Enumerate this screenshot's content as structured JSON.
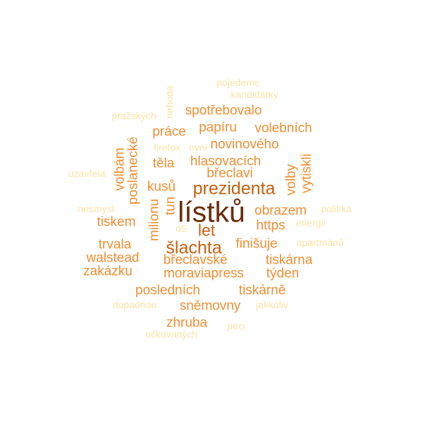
{
  "palette": {
    "dark": "#6b2d0c",
    "strong": "#c7600f",
    "mid": "#ef8e33",
    "soft": "#f7b25a",
    "pale": "#fde3a6"
  },
  "words": [
    {
      "text": "lístků",
      "color": "dark",
      "weight": 1.0
    },
    {
      "text": "prezidenta",
      "color": "strong",
      "weight": 0.7
    },
    {
      "text": "šlachta",
      "color": "strong",
      "weight": 0.65
    },
    {
      "text": "let",
      "color": "strong",
      "weight": 0.6
    },
    {
      "text": "volebních",
      "color": "mid",
      "weight": 0.45
    },
    {
      "text": "spotřebovalo",
      "color": "mid",
      "weight": 0.45
    },
    {
      "text": "papíru",
      "color": "mid",
      "weight": 0.45
    },
    {
      "text": "práce",
      "color": "mid",
      "weight": 0.45
    },
    {
      "text": "novinového",
      "color": "mid",
      "weight": 0.45
    },
    {
      "text": "hlasovacích",
      "color": "mid",
      "weight": 0.45
    },
    {
      "text": "těla",
      "color": "mid",
      "weight": 0.45
    },
    {
      "text": "břeclavi",
      "color": "mid",
      "weight": 0.45
    },
    {
      "text": "kusů",
      "color": "mid",
      "weight": 0.45
    },
    {
      "text": "obrazem",
      "color": "mid",
      "weight": 0.45
    },
    {
      "text": "https",
      "color": "mid",
      "weight": 0.45
    },
    {
      "text": "tiskem",
      "color": "mid",
      "weight": 0.45
    },
    {
      "text": "trvala",
      "color": "mid",
      "weight": 0.45
    },
    {
      "text": "finišuje",
      "color": "mid",
      "weight": 0.45
    },
    {
      "text": "walstead",
      "color": "mid",
      "weight": 0.45
    },
    {
      "text": "břeclavské",
      "color": "mid",
      "weight": 0.45
    },
    {
      "text": "tiskárna",
      "color": "mid",
      "weight": 0.45
    },
    {
      "text": "zakázku",
      "color": "mid",
      "weight": 0.45
    },
    {
      "text": "moraviapress",
      "color": "mid",
      "weight": 0.45
    },
    {
      "text": "týden",
      "color": "mid",
      "weight": 0.45
    },
    {
      "text": "posledních",
      "color": "mid",
      "weight": 0.45
    },
    {
      "text": "tiskárně",
      "color": "mid",
      "weight": 0.45
    },
    {
      "text": "sněmovny",
      "color": "mid",
      "weight": 0.45
    },
    {
      "text": "zhruba",
      "color": "mid",
      "weight": 0.45
    },
    {
      "text": "poslanecké",
      "color": "mid",
      "weight": 0.45
    },
    {
      "text": "volbám",
      "color": "mid",
      "weight": 0.45
    },
    {
      "text": "volby",
      "color": "mid",
      "weight": 0.45
    },
    {
      "text": "vytiskli",
      "color": "mid",
      "weight": 0.45
    },
    {
      "text": "milionu",
      "color": "mid",
      "weight": 0.45
    },
    {
      "text": "tun",
      "color": "mid",
      "weight": 0.45
    },
    {
      "text": "pojedeme",
      "color": "pale",
      "weight": 0.2
    },
    {
      "text": "kandidátky",
      "color": "pale",
      "weight": 0.2
    },
    {
      "text": "pražských",
      "color": "pale",
      "weight": 0.2
    },
    {
      "text": "nehoda",
      "color": "pale",
      "weight": 0.2
    },
    {
      "text": "firefox",
      "color": "pale",
      "weight": 0.2
    },
    {
      "text": "nyní",
      "color": "pale",
      "weight": 0.2
    },
    {
      "text": "uzavřela",
      "color": "pale",
      "weight": 0.2
    },
    {
      "text": "nesmysl",
      "color": "pale",
      "weight": 0.2
    },
    {
      "text": "politika",
      "color": "pale",
      "weight": 0.2
    },
    {
      "text": "energií",
      "color": "pale",
      "weight": 0.2
    },
    {
      "text": "d5",
      "color": "pale",
      "weight": 0.2
    },
    {
      "text": "apartmánů",
      "color": "pale",
      "weight": 0.2
    },
    {
      "text": "dopadnou",
      "color": "pale",
      "weight": 0.2
    },
    {
      "text": "jakkoliv",
      "color": "pale",
      "weight": 0.2
    },
    {
      "text": "peci",
      "color": "pale",
      "weight": 0.2
    },
    {
      "text": "očkovaných",
      "color": "pale",
      "weight": 0.2
    }
  ]
}
